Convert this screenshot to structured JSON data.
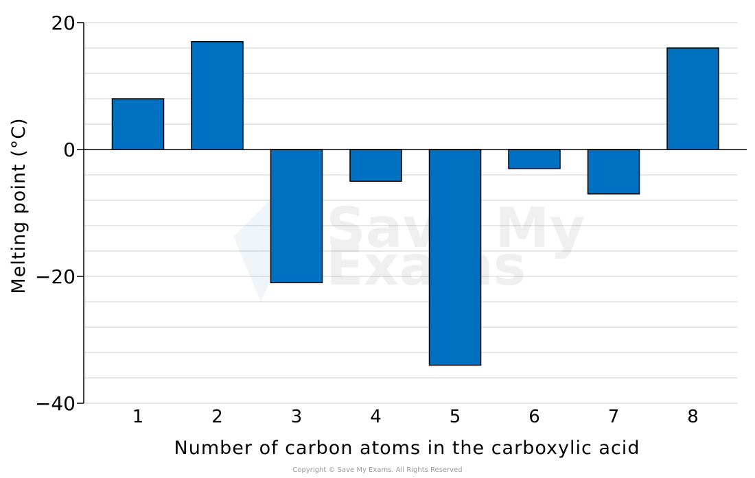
{
  "chart_data": {
    "type": "bar",
    "title": "",
    "xlabel": "Number of carbon atoms in the carboxylic acid",
    "ylabel": "Melting point (°C)",
    "categories": [
      "1",
      "2",
      "3",
      "4",
      "5",
      "6",
      "7",
      "8"
    ],
    "values": [
      8,
      17,
      -21,
      -5,
      -34,
      -3,
      -7,
      16
    ],
    "ylim": [
      -40,
      20
    ],
    "yticks": [
      20,
      0,
      -20,
      -40
    ],
    "ytick_labels": [
      "20",
      "0",
      "−20",
      "−40"
    ],
    "minor_grid_step": 4,
    "grid": true,
    "bar_color": "#0070C0",
    "bar_edge_color": "#000000"
  },
  "watermark": "Save My Exams",
  "copyright": "Copyright © Save My Exams. All Rights Reserved"
}
